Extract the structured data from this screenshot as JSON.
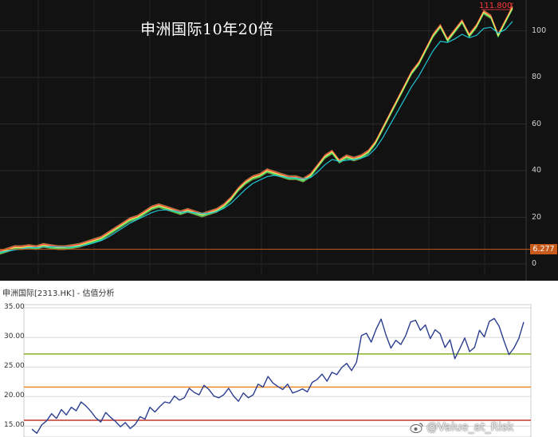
{
  "top_chart": {
    "title": "申洲国际10年20倍",
    "peak_label": "111.800",
    "last_price_label": "6.277",
    "yticks": [
      "100",
      "80",
      "60",
      "40",
      "20",
      "0"
    ],
    "colors": {
      "background": "#121212",
      "moving_average": "#1fc6d8",
      "price_band": "#f2e35a",
      "last_price_line": "#c85a1b"
    }
  },
  "bottom_chart": {
    "title": "申洲国际[2313.HK] - 估值分析",
    "yticks": [
      "35.00",
      "30.00",
      "25.00",
      "20.00",
      "15.00"
    ],
    "reference_lines": [
      {
        "value": 27.2,
        "color": "#8ab21f"
      },
      {
        "value": 21.6,
        "color": "#f08a24"
      },
      {
        "value": 16.0,
        "color": "#c0392b"
      }
    ],
    "colors": {
      "series": "#2b3d8f",
      "grid": "#d8d8d8"
    }
  },
  "watermark": {
    "text": "@Value_at_Risk",
    "icon": "weibo-icon"
  },
  "chart_data": [
    {
      "type": "line",
      "title": "申洲国际10年20倍",
      "ylim": [
        -4,
        112
      ],
      "peak": 111.8,
      "last_price_marker": 6.277,
      "grid": true,
      "series": [
        {
          "values": [
            5,
            6,
            7,
            7,
            7.5,
            7,
            8,
            7.5,
            7,
            7,
            7.5,
            8,
            9,
            10,
            11,
            13,
            15,
            17,
            19,
            20,
            22,
            24,
            25,
            24,
            23,
            22,
            23,
            22,
            21,
            22,
            23,
            25,
            28,
            32,
            35,
            37,
            38,
            40,
            39,
            38,
            37,
            37,
            36,
            38,
            42,
            46,
            48,
            44,
            46,
            45,
            46,
            48,
            52,
            58,
            64,
            70,
            76,
            82,
            86,
            92,
            98,
            102,
            96,
            100,
            104,
            98,
            102,
            108,
            106,
            98,
            104,
            110
          ]
        },
        {
          "values": [
            5,
            5.5,
            6,
            6.5,
            7,
            7,
            7.3,
            7.4,
            7.3,
            7.2,
            7.3,
            7.6,
            8.2,
            9,
            10,
            11.5,
            13.5,
            15.5,
            17.5,
            19,
            20.5,
            22,
            23,
            23.2,
            22.8,
            22.2,
            22.3,
            22,
            21.6,
            21.8,
            22.4,
            23.8,
            26,
            29,
            32,
            34.5,
            36,
            37.5,
            38,
            37.5,
            37,
            36.8,
            36.4,
            37,
            39.5,
            42.5,
            44.8,
            44,
            44.5,
            44.8,
            45.3,
            46.5,
            49.5,
            54,
            59.5,
            65,
            70.5,
            76,
            80.5,
            86,
            91.5,
            95.5,
            95,
            96.5,
            98.5,
            97,
            98,
            101,
            101.5,
            99,
            100.5,
            104
          ]
        }
      ]
    },
    {
      "type": "line",
      "title": "申洲国际[2313.HK] - 估值分析",
      "ylim": [
        14,
        35
      ],
      "grid": true,
      "series": [
        {
          "values": [
            14.5,
            13.8,
            15.2,
            15.9,
            17.1,
            16.3,
            17.8,
            16.9,
            18.2,
            17.6,
            19.1,
            18.4,
            17.5,
            16.4,
            15.7,
            17.3,
            16.5,
            15.8,
            14.9,
            15.6,
            14.6,
            15.3,
            16.6,
            16.2,
            18.2,
            17.4,
            18.3,
            19.1,
            18.9,
            20.1,
            19.4,
            19.8,
            21.4,
            20.7,
            20.3,
            21.9,
            21.2,
            20.1,
            19.8,
            20.3,
            21.4,
            20.1,
            19.2,
            20.6,
            19.8,
            20.3,
            22.1,
            21.6,
            23.4,
            22.3,
            21.7,
            21.2,
            22.1,
            20.6,
            20.9,
            21.3,
            20.8,
            22.4,
            22.9,
            23.8,
            22.6,
            24.1,
            23.7,
            24.9,
            25.6,
            24.4,
            25.8,
            30.3,
            30.7,
            29.2,
            31.4,
            33.1,
            30.4,
            28.2,
            29.5,
            28.8,
            30.3,
            32.6,
            32.9,
            31.2,
            32.1,
            29.8,
            31.3,
            30.6,
            28.3,
            29.6,
            26.4,
            28.1,
            29.9,
            27.6,
            28.3,
            31.2,
            30.1,
            32.7,
            33.2,
            31.9,
            29.4,
            27.1,
            28.2,
            29.8,
            32.6
          ]
        }
      ]
    }
  ]
}
